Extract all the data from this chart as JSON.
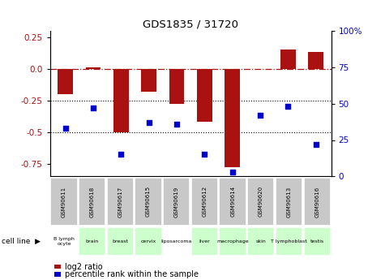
{
  "title": "GDS1835 / 31720",
  "samples": [
    "GSM90611",
    "GSM90618",
    "GSM90617",
    "GSM90615",
    "GSM90619",
    "GSM90612",
    "GSM90614",
    "GSM90620",
    "GSM90613",
    "GSM90616"
  ],
  "cell_lines": [
    "B lymph\nocyte",
    "brain",
    "breast",
    "cervix",
    "liposarcoma",
    "liver",
    "macrophage",
    "skin",
    "T lymphoblast",
    "testis"
  ],
  "cell_line_short": [
    "B lymph\nocyte",
    "brain",
    "breast",
    "cervix",
    "liposarcoma",
    "liver",
    "macrophage",
    "skin",
    "T lymphoblast",
    "testis"
  ],
  "cell_line_colors": [
    "#ffffff",
    "#ccffcc",
    "#ccffcc",
    "#ccffcc",
    "#ffffff",
    "#ccffcc",
    "#ccffcc",
    "#ccffcc",
    "#ccffcc",
    "#ccffcc"
  ],
  "log2_ratio": [
    -0.2,
    0.01,
    -0.5,
    -0.18,
    -0.28,
    -0.42,
    -0.78,
    0.0,
    0.15,
    0.13
  ],
  "percentile_rank": [
    33,
    47,
    15,
    37,
    36,
    15,
    3,
    42,
    48,
    22
  ],
  "bar_color": "#aa1111",
  "dot_color": "#0000cc",
  "left_ylim": [
    -0.85,
    0.3
  ],
  "right_ylim": [
    0,
    100
  ],
  "left_yticks": [
    -0.75,
    -0.5,
    -0.25,
    0.0,
    0.25
  ],
  "right_yticks": [
    0,
    25,
    50,
    75,
    100
  ],
  "dotted_lines": [
    -0.25,
    -0.5
  ],
  "bar_width": 0.55,
  "background_color": "#ffffff",
  "sample_box_color": "#c8c8c8",
  "border_color": "#aaaaaa"
}
